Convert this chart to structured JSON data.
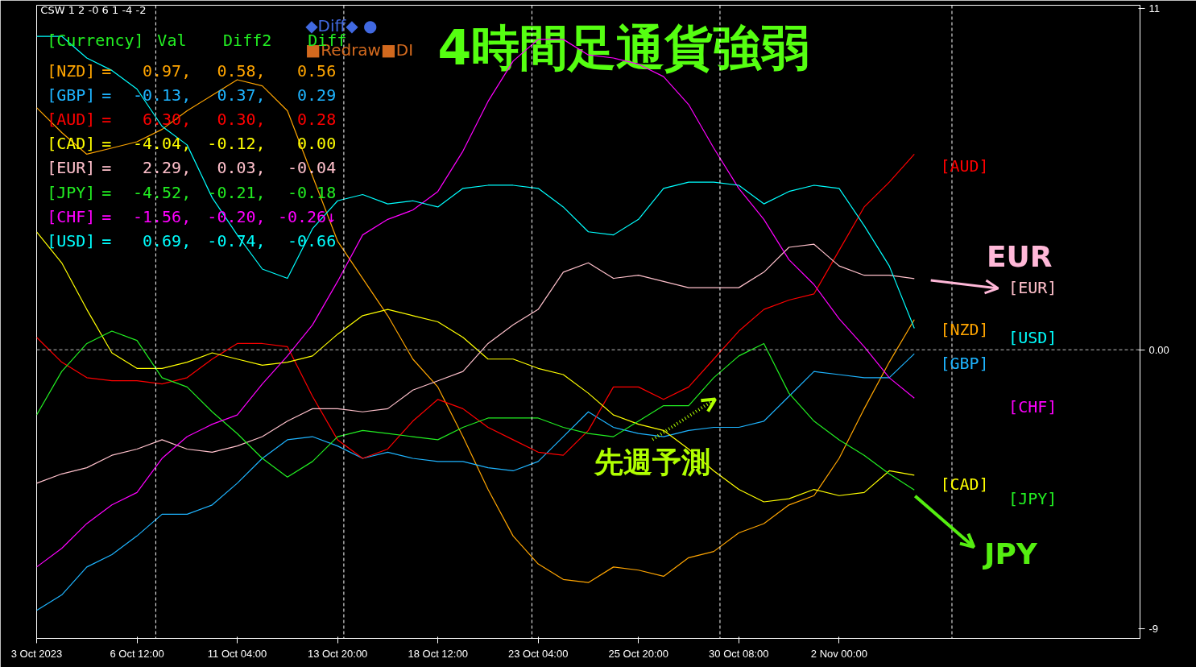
{
  "chart_data": {
    "type": "line",
    "title": "4時間足通貨強弱",
    "categories": [
      "3 Oct 2023",
      null,
      null,
      null,
      "6 Oct 12:00",
      null,
      null,
      null,
      "11 Oct 04:00",
      null,
      null,
      null,
      "13 Oct 20:00",
      null,
      null,
      null,
      "18 Oct 12:00",
      null,
      null,
      null,
      "23 Oct 04:00",
      null,
      null,
      null,
      "25 Oct 20:00",
      null,
      null,
      null,
      "30 Oct 08:00",
      null,
      null,
      null,
      "2 Nov 00:00",
      null,
      null,
      null,
      null,
      null,
      null,
      null,
      null,
      null,
      null,
      null,
      null
    ],
    "ylim": [
      -9.3,
      11.1
    ],
    "yticks": [
      11,
      {
        "value": 0,
        "label": "0.00"
      },
      -9
    ],
    "grid": false,
    "series": [
      {
        "name": "[NZD]",
        "color": "#ffa500",
        "values": [
          7.8,
          7.0,
          6.3,
          6.5,
          6.7,
          7.1,
          7.7,
          8.2,
          8.7,
          8.5,
          7.7,
          5.6,
          3.5,
          2.3,
          1.1,
          -0.3,
          -1.2,
          -2.8,
          -4.5,
          -6.0,
          -6.9,
          -7.4,
          -7.5,
          -7.0,
          -7.1,
          -7.3,
          -6.7,
          -6.5,
          -5.9,
          -5.6,
          -5.0,
          -4.7,
          -3.5,
          -1.9,
          -0.4,
          0.97,
          null,
          null,
          null,
          null,
          null,
          null,
          null,
          null,
          null
        ]
      },
      {
        "name": "[GBP]",
        "color": "#1eb4ff",
        "values": [
          -8.4,
          -7.9,
          -7.0,
          -6.6,
          -6.0,
          -5.3,
          -5.3,
          -5.0,
          -4.3,
          -3.5,
          -2.9,
          -2.8,
          -3.1,
          -3.5,
          -3.3,
          -3.5,
          -3.6,
          -3.6,
          -3.8,
          -3.9,
          -3.6,
          -2.8,
          -2.0,
          -2.5,
          -2.7,
          -2.8,
          -2.6,
          -2.5,
          -2.5,
          -2.3,
          -1.5,
          -0.7,
          -0.8,
          -0.9,
          -0.9,
          -0.13,
          null,
          null,
          null,
          null,
          null,
          null,
          null,
          null,
          null
        ]
      },
      {
        "name": "[AUD]",
        "color": "#ff0000",
        "values": [
          0.4,
          -0.4,
          -0.9,
          -1.0,
          -1.0,
          -1.1,
          -0.9,
          -0.3,
          0.2,
          0.2,
          0.1,
          -1.5,
          -2.9,
          -3.5,
          -3.2,
          -2.3,
          -1.6,
          -1.9,
          -2.5,
          -2.9,
          -3.3,
          -3.4,
          -2.6,
          -1.2,
          -1.2,
          -1.6,
          -1.2,
          -0.3,
          0.6,
          1.3,
          1.6,
          1.8,
          3.2,
          4.6,
          5.4,
          6.3,
          null,
          null,
          null,
          null,
          null,
          null,
          null,
          null,
          null
        ]
      },
      {
        "name": "[CAD]",
        "color": "#ffff00",
        "values": [
          3.8,
          2.8,
          1.3,
          -0.1,
          -0.6,
          -0.6,
          -0.4,
          -0.1,
          -0.3,
          -0.5,
          -0.4,
          -0.2,
          0.5,
          1.1,
          1.3,
          1.1,
          0.9,
          0.4,
          -0.3,
          -0.3,
          -0.6,
          -0.8,
          -1.4,
          -2.1,
          -2.4,
          -2.6,
          -3.2,
          -3.9,
          -4.5,
          -4.9,
          -4.8,
          -4.5,
          -4.7,
          -4.6,
          -3.9,
          -4.04,
          null,
          null,
          null,
          null,
          null,
          null,
          null,
          null,
          null
        ]
      },
      {
        "name": "[EUR]",
        "color": "#ffc0cb",
        "values": [
          -4.3,
          -4.0,
          -3.8,
          -3.4,
          -3.2,
          -2.9,
          -3.2,
          -3.3,
          -3.1,
          -2.8,
          -2.3,
          -1.9,
          -1.9,
          -2.0,
          -1.9,
          -1.3,
          -1.0,
          -0.7,
          0.2,
          0.8,
          1.3,
          2.5,
          2.8,
          2.3,
          2.4,
          2.2,
          2.0,
          2.0,
          2.0,
          2.5,
          3.3,
          3.4,
          2.7,
          2.4,
          2.4,
          2.29,
          null,
          null,
          null,
          null,
          null,
          null,
          null,
          null,
          null
        ]
      },
      {
        "name": "[JPY]",
        "color": "#22ee22",
        "values": [
          -2.1,
          -0.7,
          0.2,
          0.6,
          0.3,
          -0.9,
          -1.2,
          -2.0,
          -2.7,
          -3.5,
          -4.1,
          -3.6,
          -2.8,
          -2.6,
          -2.7,
          -2.8,
          -2.9,
          -2.5,
          -2.2,
          -2.2,
          -2.2,
          -2.5,
          -2.7,
          -2.8,
          -2.3,
          -1.8,
          -1.8,
          -0.9,
          -0.2,
          0.2,
          -1.4,
          -2.3,
          -2.9,
          -3.4,
          -4.0,
          -4.52,
          null,
          null,
          null,
          null,
          null,
          null,
          null,
          null,
          null
        ]
      },
      {
        "name": "[CHF]",
        "color": "#ff00ff",
        "values": [
          -7.0,
          -6.4,
          -5.6,
          -5.0,
          -4.6,
          -3.5,
          -2.8,
          -2.4,
          -2.1,
          -1.1,
          -0.2,
          0.8,
          2.2,
          3.7,
          4.2,
          4.5,
          5.1,
          6.4,
          8.0,
          9.3,
          10.0,
          10.0,
          9.5,
          9.4,
          9.2,
          8.8,
          7.9,
          6.5,
          5.2,
          4.2,
          2.9,
          2.1,
          1.0,
          0.1,
          -0.9,
          -1.56,
          null,
          null,
          null,
          null,
          null,
          null,
          null,
          null,
          null
        ]
      },
      {
        "name": "[USD]",
        "color": "#00ffff",
        "values": [
          10.1,
          10.1,
          9.4,
          9.0,
          8.4,
          7.2,
          6.6,
          4.9,
          3.7,
          2.6,
          2.3,
          3.9,
          4.8,
          5.0,
          4.7,
          4.8,
          4.6,
          5.2,
          5.3,
          5.3,
          5.2,
          4.6,
          3.8,
          3.7,
          4.2,
          5.2,
          5.4,
          5.4,
          5.3,
          4.7,
          5.1,
          5.3,
          5.2,
          4.0,
          2.7,
          0.69,
          null,
          null,
          null,
          null,
          null,
          null,
          null,
          null,
          null
        ]
      }
    ],
    "ref_lines": [
      {
        "axis": "y",
        "value": 0,
        "color": "#c0c0c0",
        "line_style": "dashed"
      }
    ],
    "annotations": [
      "CSW 1 2 -0 6 1 -4 -2",
      "◆Diff◆ ●",
      "■Redraw■DI",
      "[Currency] Val Diff2 Diff",
      "[NZD] = 0.97, 0.58, 0.56",
      "[GBP] = -0.13, 0.37, 0.29",
      "[AUD] = 6.30, 0.30, 0.28",
      "[CAD] = -4.04, -0.12, 0.00",
      "[EUR] = 2.29, 0.03, -0.04",
      "[JPY] = -4.52, -0.21, -0.18",
      "[CHF] = -1.56, -0.20, -0.26↓",
      "[USD] = 0.69, -0.74, -0.66",
      "先週予測",
      "EUR",
      "JPY"
    ]
  }
}
